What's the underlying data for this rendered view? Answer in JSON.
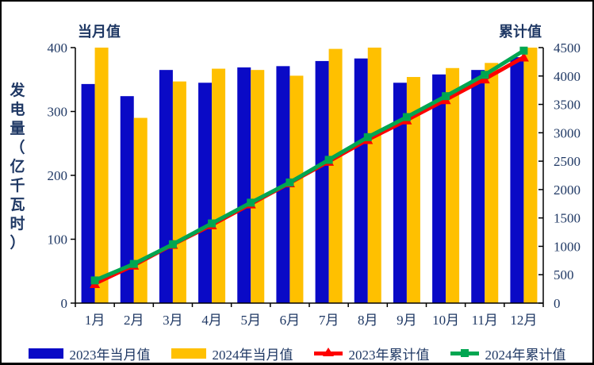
{
  "colors": {
    "bar_2023": "#0A0AC6",
    "bar_2024": "#FFC000",
    "line_2023": "#FE0000",
    "line_2024": "#00A651",
    "text": "#1F3864",
    "axis": "#000000",
    "background": "#FFFFFF",
    "border": "#000000"
  },
  "chart_data": {
    "type": "bar+line",
    "ylabel": "发电量（亿千瓦时）",
    "categories": [
      "1月",
      "2月",
      "3月",
      "4月",
      "5月",
      "6月",
      "7月",
      "8月",
      "9月",
      "10月",
      "11月",
      "12月"
    ],
    "left_axis": {
      "title": "当月值",
      "min": 0,
      "max": 400,
      "ticks": [
        0,
        100,
        200,
        300,
        400
      ]
    },
    "right_axis": {
      "title": "累计值",
      "min": 0,
      "max": 4500,
      "ticks": [
        0,
        500,
        1000,
        1500,
        2000,
        2500,
        3000,
        3500,
        4000,
        4500
      ]
    },
    "grid": false,
    "legend_position": "bottom",
    "series": [
      {
        "name": "2023年当月值",
        "type": "bar",
        "axis": "left",
        "color": "#0A0AC6",
        "values": [
          343,
          324,
          365,
          345,
          369,
          371,
          379,
          383,
          345,
          358,
          365,
          385
        ]
      },
      {
        "name": "2024年当月值",
        "type": "bar",
        "axis": "left",
        "color": "#FFC000",
        "values": [
          400,
          290,
          347,
          367,
          365,
          356,
          398,
          400,
          354,
          368,
          376,
          426
        ]
      },
      {
        "name": "2023年累计值",
        "type": "line",
        "marker": "triangle",
        "axis": "right",
        "color": "#FE0000",
        "values": [
          343,
          667,
          1032,
          1377,
          1746,
          2117,
          2496,
          2879,
          3224,
          3582,
          3947,
          4332
        ]
      },
      {
        "name": "2024年累计值",
        "type": "line",
        "marker": "square",
        "axis": "right",
        "color": "#00A651",
        "values": [
          400,
          690,
          1037,
          1404,
          1769,
          2125,
          2523,
          2923,
          3277,
          3645,
          4021,
          4447
        ]
      }
    ]
  }
}
